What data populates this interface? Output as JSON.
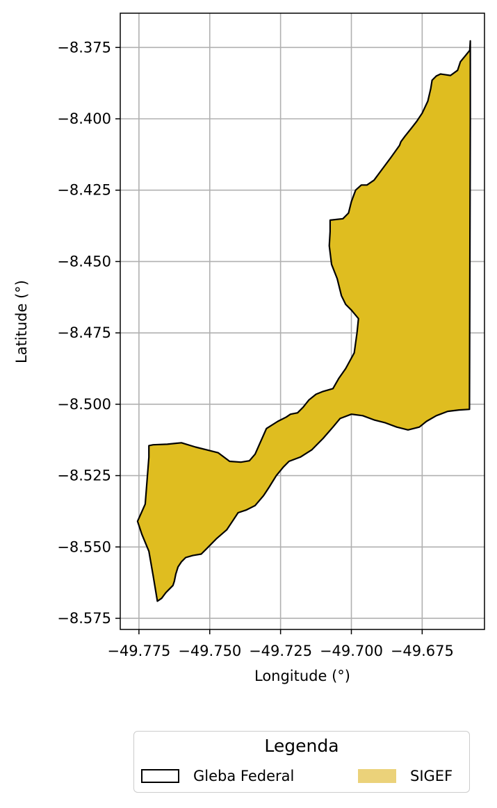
{
  "chart_data": {
    "type": "map",
    "xlabel": "Longitude (°)",
    "ylabel": "Latitude (°)",
    "xlim": [
      -49.7816,
      -49.653
    ],
    "ylim": [
      -8.5789,
      -8.363
    ],
    "x_ticks": [
      -49.775,
      -49.75,
      -49.725,
      -49.7,
      -49.675
    ],
    "x_tick_labels": [
      "−49.775",
      "−49.750",
      "−49.725",
      "−49.700",
      "−49.675"
    ],
    "y_ticks": [
      -8.375,
      -8.4,
      -8.425,
      -8.45,
      -8.475,
      -8.5,
      -8.525,
      -8.55,
      -8.575
    ],
    "y_tick_labels": [
      "−8.375",
      "−8.400",
      "−8.425",
      "−8.450",
      "−8.475",
      "−8.500",
      "−8.525",
      "−8.550",
      "−8.575"
    ],
    "grid": true,
    "legend": {
      "title": "Legenda",
      "placement": "bottom-center",
      "entries": [
        {
          "label": "Gleba Federal",
          "style": "outline",
          "edge": "#000000",
          "fill": "none"
        },
        {
          "label": "SIGEF",
          "style": "fill",
          "fill": "#ebd27a"
        }
      ]
    },
    "series": [
      {
        "name": "Gleba Federal",
        "geometry": "polygon",
        "fill": "#dfbd20",
        "edge": "#000000",
        "coordinates": [
          [
            -49.658,
            -8.3727
          ],
          [
            -49.6582,
            -8.376
          ],
          [
            -49.66,
            -8.3782
          ],
          [
            -49.6615,
            -8.38
          ],
          [
            -49.6625,
            -8.383
          ],
          [
            -49.665,
            -8.3848
          ],
          [
            -49.6685,
            -8.3843
          ],
          [
            -49.67,
            -8.385
          ],
          [
            -49.6715,
            -8.3865
          ],
          [
            -49.672,
            -8.3895
          ],
          [
            -49.673,
            -8.3938
          ],
          [
            -49.675,
            -8.398
          ],
          [
            -49.677,
            -8.401
          ],
          [
            -49.679,
            -8.4035
          ],
          [
            -49.681,
            -8.406
          ],
          [
            -49.6825,
            -8.408
          ],
          [
            -49.683,
            -8.4093
          ],
          [
            -49.686,
            -8.4135
          ],
          [
            -49.689,
            -8.4175
          ],
          [
            -49.692,
            -8.4215
          ],
          [
            -49.6945,
            -8.4232
          ],
          [
            -49.6965,
            -8.4232
          ],
          [
            -49.6985,
            -8.425
          ],
          [
            -49.7,
            -8.429
          ],
          [
            -49.701,
            -8.433
          ],
          [
            -49.703,
            -8.435
          ],
          [
            -49.7075,
            -8.4355
          ],
          [
            -49.7075,
            -8.4395
          ],
          [
            -49.7078,
            -8.4445
          ],
          [
            -49.707,
            -8.451
          ],
          [
            -49.705,
            -8.456
          ],
          [
            -49.7035,
            -8.462
          ],
          [
            -49.702,
            -8.465
          ],
          [
            -49.7,
            -8.467
          ],
          [
            -49.6975,
            -8.47
          ],
          [
            -49.698,
            -8.475
          ],
          [
            -49.699,
            -8.482
          ],
          [
            -49.702,
            -8.4875
          ],
          [
            -49.7045,
            -8.491
          ],
          [
            -49.7065,
            -8.4945
          ],
          [
            -49.71,
            -8.4955
          ],
          [
            -49.7125,
            -8.4965
          ],
          [
            -49.715,
            -8.4985
          ],
          [
            -49.717,
            -8.501
          ],
          [
            -49.719,
            -8.503
          ],
          [
            -49.7215,
            -8.5035
          ],
          [
            -49.723,
            -8.5045
          ],
          [
            -49.726,
            -8.506
          ],
          [
            -49.73,
            -8.5085
          ],
          [
            -49.732,
            -8.513
          ],
          [
            -49.734,
            -8.5175
          ],
          [
            -49.736,
            -8.5198
          ],
          [
            -49.739,
            -8.5203
          ],
          [
            -49.743,
            -8.52
          ],
          [
            -49.747,
            -8.517
          ],
          [
            -49.751,
            -8.516
          ],
          [
            -49.755,
            -8.515
          ],
          [
            -49.76,
            -8.5135
          ],
          [
            -49.765,
            -8.514
          ],
          [
            -49.77,
            -8.5142
          ],
          [
            -49.7715,
            -8.5145
          ],
          [
            -49.7715,
            -8.5185
          ],
          [
            -49.7728,
            -8.535
          ],
          [
            -49.7755,
            -8.541
          ],
          [
            -49.774,
            -8.5455
          ],
          [
            -49.7715,
            -8.5515
          ],
          [
            -49.77,
            -8.56
          ],
          [
            -49.7685,
            -8.569
          ],
          [
            -49.767,
            -8.568
          ],
          [
            -49.7655,
            -8.566
          ],
          [
            -49.764,
            -8.5645
          ],
          [
            -49.763,
            -8.5635
          ],
          [
            -49.7625,
            -8.562
          ],
          [
            -49.762,
            -8.5595
          ],
          [
            -49.7612,
            -8.557
          ],
          [
            -49.76,
            -8.5552
          ],
          [
            -49.7585,
            -8.5537
          ],
          [
            -49.756,
            -8.553
          ],
          [
            -49.753,
            -8.5525
          ],
          [
            -49.751,
            -8.5505
          ],
          [
            -49.7475,
            -8.547
          ],
          [
            -49.744,
            -8.544
          ],
          [
            -49.742,
            -8.541
          ],
          [
            -49.74,
            -8.538
          ],
          [
            -49.737,
            -8.537
          ],
          [
            -49.734,
            -8.5355
          ],
          [
            -49.731,
            -8.532
          ],
          [
            -49.729,
            -8.529
          ],
          [
            -49.7265,
            -8.525
          ],
          [
            -49.724,
            -8.522
          ],
          [
            -49.722,
            -8.52
          ],
          [
            -49.718,
            -8.5185
          ],
          [
            -49.714,
            -8.516
          ],
          [
            -49.71,
            -8.512
          ],
          [
            -49.7065,
            -8.508
          ],
          [
            -49.704,
            -8.505
          ],
          [
            -49.7,
            -8.5035
          ],
          [
            -49.696,
            -8.504
          ],
          [
            -49.692,
            -8.5055
          ],
          [
            -49.688,
            -8.5065
          ],
          [
            -49.684,
            -8.508
          ],
          [
            -49.68,
            -8.509
          ],
          [
            -49.676,
            -8.508
          ],
          [
            -49.6735,
            -8.506
          ],
          [
            -49.67,
            -8.504
          ],
          [
            -49.666,
            -8.5025
          ],
          [
            -49.662,
            -8.502
          ],
          [
            -49.6583,
            -8.5018
          ],
          [
            -49.658,
            -8.4005
          ],
          [
            -49.658,
            -8.3727
          ]
        ]
      }
    ]
  }
}
